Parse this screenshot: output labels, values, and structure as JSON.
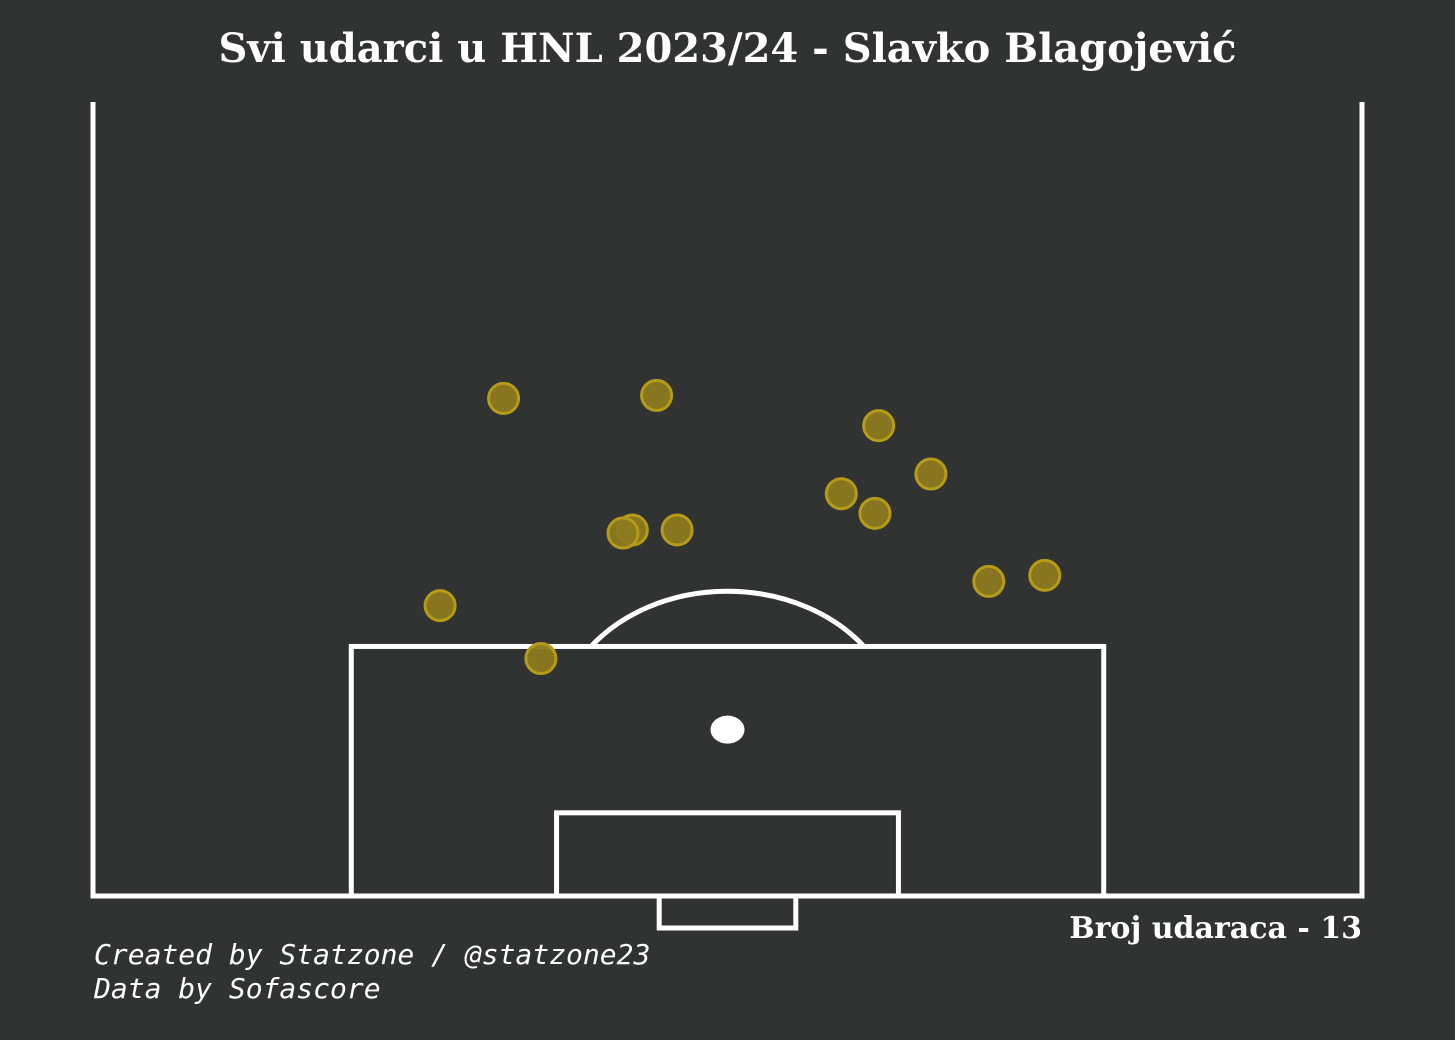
{
  "header": {
    "title": "Svi udarci u HNL 2023/24 - Slavko Blagojević"
  },
  "summary": {
    "shot_count_label": "Broj udaraca - 13"
  },
  "footer": {
    "created_by": "Created by Statzone / @statzone23",
    "data_source": "Data by Sofascore"
  },
  "colors": {
    "background": "#313332",
    "lines": "#ffffff",
    "shot_fill": "#8c7a1f",
    "shot_edge": "#b59b16"
  },
  "chart_data": {
    "type": "scatter",
    "pitch": "half-pitch, vertical, goal at bottom",
    "x_axis": "pitch width in metres from left touchline (0–68)",
    "y_axis": "distance in metres from goal line (0–52.5)",
    "xlim": [
      0,
      68
    ],
    "ylim": [
      0,
      52.5
    ],
    "shots": [
      {
        "x": 22.0,
        "y": 32.9
      },
      {
        "x": 30.2,
        "y": 33.1
      },
      {
        "x": 42.1,
        "y": 31.1
      },
      {
        "x": 44.9,
        "y": 27.9
      },
      {
        "x": 40.1,
        "y": 26.6
      },
      {
        "x": 41.9,
        "y": 25.3
      },
      {
        "x": 28.9,
        "y": 24.2
      },
      {
        "x": 28.4,
        "y": 24.0
      },
      {
        "x": 31.3,
        "y": 24.2
      },
      {
        "x": 48.0,
        "y": 20.8
      },
      {
        "x": 51.0,
        "y": 21.2
      },
      {
        "x": 18.6,
        "y": 19.2
      },
      {
        "x": 24.0,
        "y": 15.7
      }
    ]
  }
}
